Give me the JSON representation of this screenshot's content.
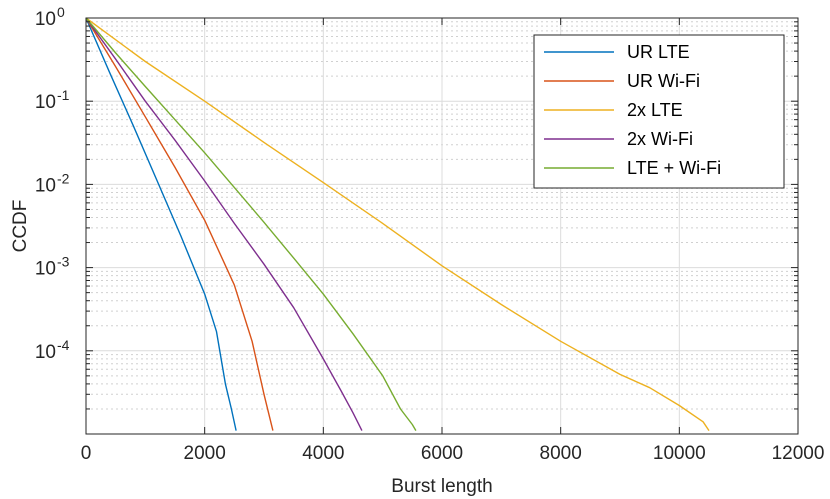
{
  "chart_data": {
    "type": "line",
    "title": "",
    "xlabel": "Burst length",
    "ylabel": "CCDF",
    "xlim": [
      0,
      12000
    ],
    "ylim": [
      1e-05,
      1
    ],
    "yscale": "log",
    "grid": true,
    "minor_grid": true,
    "legend_position": "top-right",
    "x_ticks": [
      0,
      2000,
      4000,
      6000,
      8000,
      10000,
      12000
    ],
    "x_tick_labels": [
      "0",
      "2000",
      "4000",
      "6000",
      "8000",
      "10000",
      "12000"
    ],
    "y_ticks": [
      1,
      0.1,
      0.01,
      0.001,
      0.0001
    ],
    "y_tick_labels": [
      {
        "base": "10",
        "exp": "0"
      },
      {
        "base": "10",
        "exp": "-1"
      },
      {
        "base": "10",
        "exp": "-2"
      },
      {
        "base": "10",
        "exp": "-3"
      },
      {
        "base": "10",
        "exp": "-4"
      }
    ],
    "series": [
      {
        "name": "UR LTE",
        "color": "#0072BD",
        "x": [
          0,
          400,
          800,
          1200,
          1600,
          2000,
          2200,
          2350,
          2450,
          2530
        ],
        "y": [
          1,
          0.22,
          0.05,
          0.011,
          0.0024,
          0.00048,
          0.00017,
          4e-05,
          2e-05,
          1.1e-05
        ]
      },
      {
        "name": "UR Wi-Fi",
        "color": "#D95319",
        "x": [
          0,
          500,
          1000,
          1500,
          2000,
          2500,
          2800,
          3000,
          3150
        ],
        "y": [
          1,
          0.26,
          0.065,
          0.016,
          0.0037,
          0.00062,
          0.00013,
          3e-05,
          1.1e-05
        ]
      },
      {
        "name": "2x LTE",
        "color": "#EDB120",
        "x": [
          0,
          1000,
          2000,
          3000,
          4000,
          5000,
          6000,
          7000,
          8000,
          9000,
          9500,
          10000,
          10400,
          10500
        ],
        "y": [
          1,
          0.3,
          0.1,
          0.032,
          0.0105,
          0.0034,
          0.00105,
          0.00036,
          0.00013,
          5.2e-05,
          3.6e-05,
          2.2e-05,
          1.4e-05,
          1.1e-05
        ]
      },
      {
        "name": "2x Wi-Fi",
        "color": "#7E2F8E",
        "x": [
          0,
          500,
          1000,
          1500,
          2000,
          2500,
          3000,
          3500,
          4000,
          4300,
          4500,
          4650
        ],
        "y": [
          1,
          0.32,
          0.1,
          0.034,
          0.011,
          0.0034,
          0.0011,
          0.00033,
          8e-05,
          3.3e-05,
          1.8e-05,
          1.1e-05
        ]
      },
      {
        "name": "LTE + Wi-Fi",
        "color": "#77AC30",
        "x": [
          0,
          500,
          1000,
          1500,
          2000,
          2500,
          3000,
          3500,
          4000,
          4500,
          5000,
          5300,
          5500,
          5560
        ],
        "y": [
          1,
          0.38,
          0.15,
          0.06,
          0.024,
          0.0092,
          0.0035,
          0.0013,
          0.00048,
          0.00016,
          5e-05,
          2e-05,
          1.3e-05,
          1.1e-05
        ]
      }
    ]
  }
}
